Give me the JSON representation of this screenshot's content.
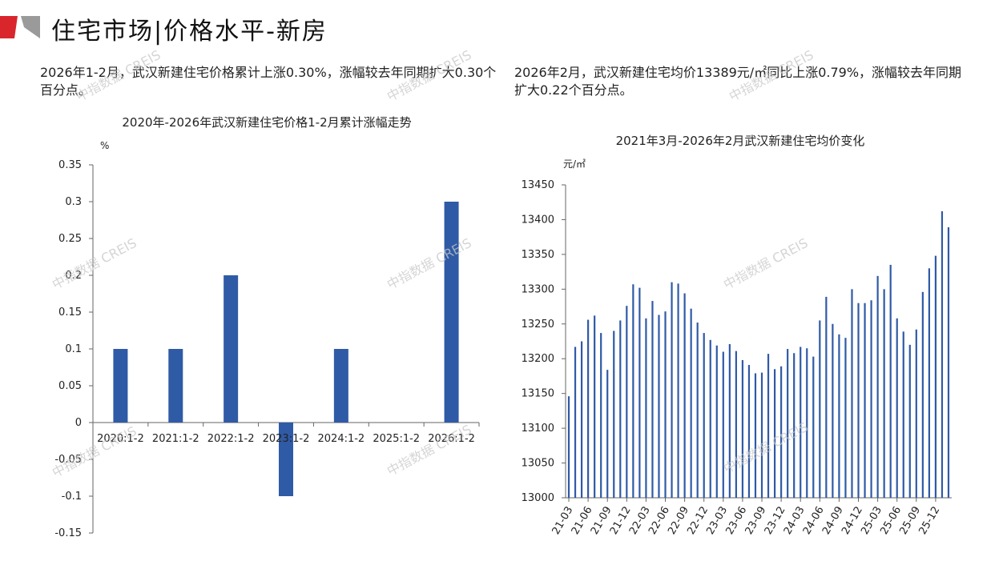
{
  "header": {
    "title": "住宅市场|价格水平-新房"
  },
  "captions": {
    "left": "2026年1-2月，武汉新建住宅价格累计上涨0.30%，涨幅较去年同期扩大0.30个百分点。",
    "right": "2026年2月，武汉新建住宅均价13389元/㎡同比上涨0.79%，涨幅较去年同期扩大0.22个百分点。"
  },
  "watermark": "中指数据 CREIS",
  "colors": {
    "bar": "#2f5aa6",
    "accent_red": "#d9262c",
    "accent_gray": "#9a9a9a"
  },
  "chart_data": [
    {
      "type": "bar",
      "title": "2020年-2026年武汉新建住宅价格1-2月累计涨幅走势",
      "ylabel": "%",
      "xlabel": "",
      "ylim": [
        -0.15,
        0.35
      ],
      "yticks": [
        "0.35",
        "0.3",
        "0.25",
        "0.2",
        "0.15",
        "0.1",
        "0.05",
        "0",
        "-0.05",
        "-0.1",
        "-0.15"
      ],
      "categories": [
        "2020:1-2",
        "2021:1-2",
        "2022:1-2",
        "2023:1-2",
        "2024:1-2",
        "2025:1-2",
        "2026:1-2"
      ],
      "values": [
        0.1,
        0.1,
        0.2,
        -0.1,
        0.1,
        0,
        0.3
      ]
    },
    {
      "type": "bar",
      "title": "2021年3月-2026年2月武汉新建住宅均价变化",
      "ylabel": "元/㎡",
      "xlabel": "",
      "ylim": [
        13000,
        13450
      ],
      "yticks": [
        "13450",
        "13400",
        "13350",
        "13300",
        "13250",
        "13200",
        "13150",
        "13100",
        "13050",
        "13000"
      ],
      "x_tick_labels": [
        "21-03",
        "21-06",
        "21-09",
        "21-12",
        "22-03",
        "22-06",
        "22-09",
        "22-12",
        "23-03",
        "23-06",
        "23-09",
        "23-12",
        "24-03",
        "24-06",
        "24-09",
        "24-12",
        "25-03",
        "25-06",
        "25-09",
        "25-12"
      ],
      "values": [
        13146,
        13217,
        13225,
        13256,
        13262,
        13237,
        13184,
        13240,
        13255,
        13276,
        13307,
        13302,
        13258,
        13283,
        13263,
        13268,
        13310,
        13308,
        13294,
        13272,
        13252,
        13237,
        13227,
        13219,
        13210,
        13221,
        13211,
        13198,
        13191,
        13179,
        13180,
        13207,
        13185,
        13189,
        13214,
        13208,
        13217,
        13215,
        13203,
        13255,
        13289,
        13250,
        13235,
        13230,
        13300,
        13280,
        13280,
        13284,
        13319,
        13300,
        13335,
        13258,
        13239,
        13220,
        13242,
        13296,
        13330,
        13348,
        13412,
        13389
      ]
    }
  ]
}
